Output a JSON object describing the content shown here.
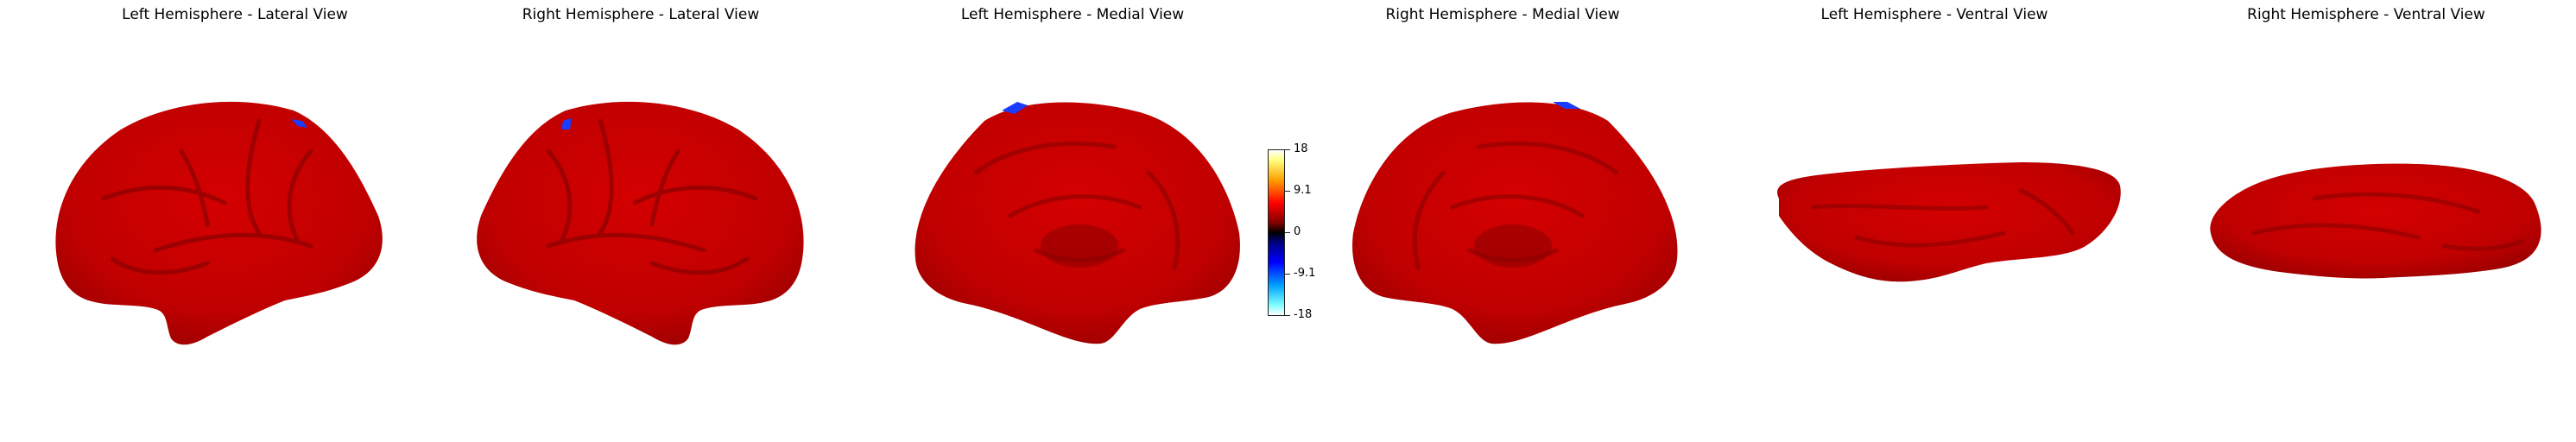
{
  "views": [
    {
      "title": "Left Hemisphere - Lateral View"
    },
    {
      "title": "Right Hemisphere - Lateral View"
    },
    {
      "title": "Left Hemisphere - Medial View"
    },
    {
      "title": "Right Hemisphere - Medial View"
    },
    {
      "title": "Left Hemisphere - Ventral View"
    },
    {
      "title": "Right Hemisphere - Ventral View"
    }
  ],
  "colorbar": {
    "min": -18,
    "max": 18,
    "ticks": [
      "18",
      "9.1",
      "0",
      "-9.1",
      "-18"
    ],
    "colormap": "cold_hot",
    "colors": {
      "positive_peak": "#ffff80",
      "positive_mid": "#ff0000",
      "zero": "#000000",
      "negative_mid": "#0000ff",
      "negative_peak": "#80ffff"
    }
  },
  "surface_colors": {
    "dominant": "#cc0000",
    "sulcus": "#8a0000",
    "negative_patch": "#1a3cff"
  }
}
